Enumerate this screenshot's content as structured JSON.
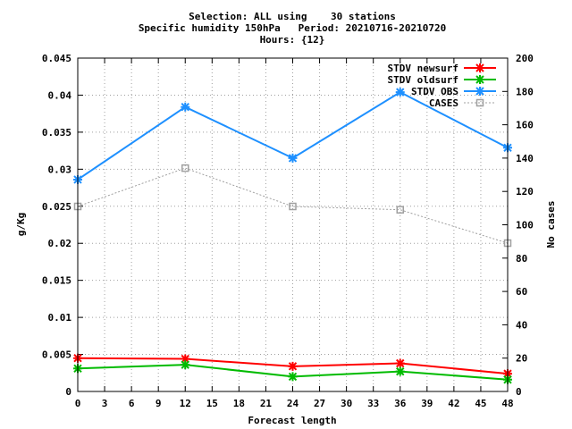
{
  "chart_data": {
    "type": "line",
    "title_lines": [
      "Selection: ALL using    30 stations",
      "Specific humidity 150hPa   Period: 20210716-20210720",
      "Hours: {12}"
    ],
    "xlabel": "Forecast length",
    "ylabel": "g/Kg",
    "y2label": "No cases",
    "xlim": [
      0,
      48
    ],
    "ylim": [
      0,
      0.045
    ],
    "y2lim": [
      0,
      200
    ],
    "xticks": [
      "0",
      "3",
      "6",
      "9",
      "12",
      "15",
      "18",
      "21",
      "24",
      "27",
      "30",
      "33",
      "36",
      "39",
      "42",
      "45",
      "48"
    ],
    "yticks": [
      "0",
      "0.005",
      "0.01",
      "0.015",
      "0.02",
      "0.025",
      "0.03",
      "0.035",
      "0.04",
      "0.045"
    ],
    "y2ticks": [
      "0",
      "20",
      "40",
      "60",
      "80",
      "100",
      "120",
      "140",
      "160",
      "180",
      "200"
    ],
    "grid": true,
    "legend_position": "top-right",
    "series": [
      {
        "name": "STDV newsurf",
        "axis": "left",
        "color": "#ff0000",
        "marker": "x-star",
        "dashed": false,
        "x": [
          0,
          12,
          24,
          36,
          48
        ],
        "y": [
          0.0045,
          0.0044,
          0.0034,
          0.0038,
          0.0024
        ]
      },
      {
        "name": "STDV oldsurf",
        "axis": "left",
        "color": "#00bb00",
        "marker": "x-star",
        "dashed": false,
        "x": [
          0,
          12,
          24,
          36,
          48
        ],
        "y": [
          0.0031,
          0.0036,
          0.002,
          0.0027,
          0.0016
        ]
      },
      {
        "name": "STDV OBS",
        "axis": "left",
        "color": "#1e90ff",
        "marker": "x-star",
        "dashed": false,
        "x": [
          0,
          12,
          24,
          36,
          48
        ],
        "y": [
          0.0286,
          0.0384,
          0.0315,
          0.0404,
          0.0329
        ]
      },
      {
        "name": "CASES",
        "axis": "right",
        "color": "#a0a0a0",
        "marker": "square",
        "dashed": true,
        "x": [
          0,
          12,
          24,
          36,
          48
        ],
        "y": [
          111,
          134,
          111,
          109,
          89
        ]
      }
    ]
  }
}
